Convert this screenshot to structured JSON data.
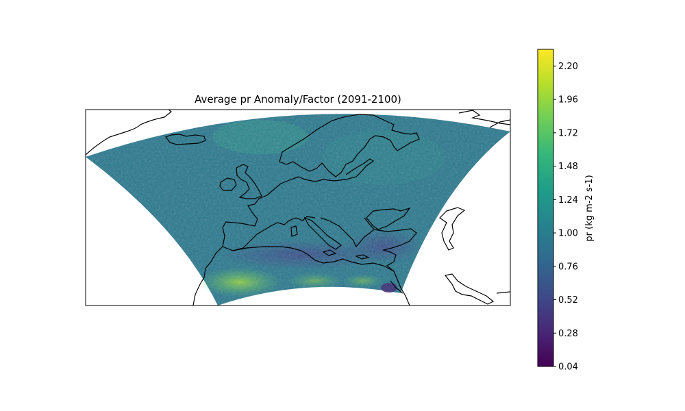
{
  "figure": {
    "title": "Average pr  Anomaly/Factor (2091-2100)"
  },
  "colorbar": {
    "label": "pr (kg m-2 s-1)",
    "min": 0.04,
    "max": 2.32,
    "ticks": [
      "0.04",
      "0.28",
      "0.52",
      "0.76",
      "1.00",
      "1.24",
      "1.48",
      "1.72",
      "1.96",
      "2.20"
    ],
    "colormap": "viridis",
    "colors": [
      "#440154",
      "#482777",
      "#3e4a89",
      "#31688e",
      "#26828e",
      "#1f9e89",
      "#35b779",
      "#6ece58",
      "#b5de2b",
      "#fde725"
    ]
  },
  "map": {
    "projection": "rotated-pole",
    "region": "Europe",
    "coastlines": true,
    "dominant_value_color": "#2a788e"
  }
}
